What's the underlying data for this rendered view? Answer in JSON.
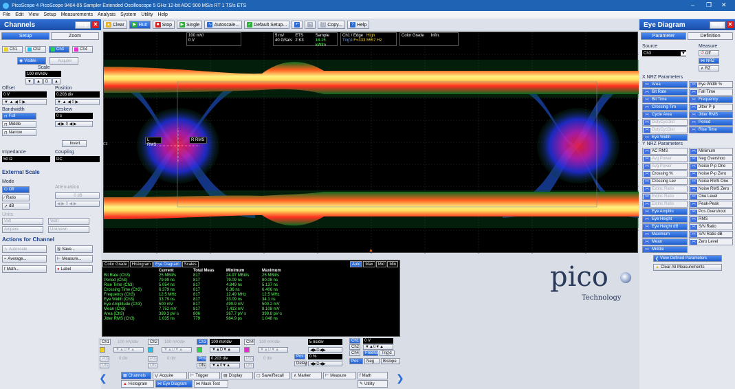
{
  "titlebar": {
    "title": "PicoScope 4  PicoScope 9404-05  Sampler Extended Oscilloscope  5 GHz  12-bit ADC  500 MS/s RT  1 TS/s ETS"
  },
  "menu": [
    "File",
    "Edit",
    "View",
    "Setup",
    "Measurements",
    "Analysis",
    "System",
    "Utility",
    "Help"
  ],
  "toolbar": {
    "clear": "Clear",
    "run": "Run",
    "stop": "Stop",
    "single": "Single",
    "autoscale": "Autoscale...",
    "default_setup": "Default Setup...",
    "copy": "Copy...",
    "help": "Help"
  },
  "left": {
    "title": "Channels",
    "help": "Help",
    "tab_setup": "Setup",
    "tab_zoom": "Zoom",
    "channels": [
      "Ch1",
      "Ch2",
      "Ch3",
      "Ch4"
    ],
    "visible": "Visible",
    "acquire": "Acquire",
    "scale_label": "Scale",
    "scale_value": "100 mV/div",
    "offset_label": "Offset",
    "offset_value": "0 V",
    "position_label": "Position",
    "position_value": "0.203 div",
    "bandwidth_label": "Bandwidth",
    "bw_full": "Full",
    "bw_middle": "Middle",
    "bw_narrow": "Narrow",
    "deskew_label": "Deskew",
    "deskew_value": "0 s",
    "invert": "Invert",
    "impedance_label": "Impedance",
    "impedance_value": "50 Ω",
    "coupling_label": "Coupling",
    "coupling_value": "DC",
    "ext_scale": "External Scale",
    "mode_label": "Mode",
    "mode_off": "Off",
    "mode_ratio": "Ratio",
    "mode_db": "dB",
    "attenuation_label": "Attenuation",
    "attenuation_value": "0 dB",
    "units_label": "Units",
    "unit_volt": "Volt",
    "unit_watt": "Watt",
    "unit_ampere": "Ampere",
    "unit_unknown": "Unknown",
    "actions": "Actions for Channel",
    "autoscale": "Autoscale",
    "save": "Save...",
    "average": "Average...",
    "measure": "Measure...",
    "math": "Math...",
    "label": "Label"
  },
  "scope": {
    "ch_scale": "100 mV/",
    "ch_offset": "0 V",
    "tb1": "5 ns/",
    "tb2": "ETS",
    "tb3": "Sample",
    "rate1": "40 GSa/s",
    "rate2": "2 K3",
    "rate3": "18.15 kWfm",
    "trig1": "Ch1 / Edge",
    "trig2": "High",
    "trig3": "Trig'd",
    "trig4": "F=333.5557 Hz",
    "colorgrade": "Color Grade",
    "infin": "Infin.",
    "lrms": "L RMS",
    "rrms": "R RMS",
    "marker": "C3"
  },
  "meas": {
    "tabs": [
      "Color Grade",
      "Histogram",
      "Eye Diagram",
      "Scales"
    ],
    "tabs_right": [
      "Auto",
      "Max",
      "Mid",
      "Min"
    ],
    "headers": [
      "",
      "Current",
      "Total Meas",
      "Minimum",
      "Maximum"
    ],
    "rows": [
      [
        "Bit Rate (Ch3)",
        "25 MBit/s",
        "817",
        "24.97 MBit/s",
        "25 MBit/s"
      ],
      [
        "Period (Ch3)",
        "79.99 ns",
        "817",
        "79.09 ns",
        "80.08 ns"
      ],
      [
        "Rise Time (Ch3)",
        "5.054 ns",
        "817",
        "4.849 ns",
        "5.137 ns"
      ],
      [
        "Crossing Time (Ch3)",
        "6.379 ns",
        "817",
        "6.36 ns",
        "6.406 ns"
      ],
      [
        "Frequency (Ch3)",
        "12.5 MHz",
        "817",
        "12.49 MHz",
        "12.5 MHz"
      ],
      [
        "Eye Width (Ch3)",
        "33.79 ns",
        "817",
        "33.09 ns",
        "34.1 ns"
      ],
      [
        "Eye Amplitude (Ch3)",
        "500 mV",
        "817",
        "499.9 mV",
        "500.2 mV"
      ],
      [
        "Mean (Ch3)",
        "7.752 mV",
        "817",
        "7.413 mV",
        "8.108 mV"
      ],
      [
        "Area (Ch3)",
        "389.3 pV·s",
        "806",
        "367.7 pV·s",
        "399.8 pV·s"
      ],
      [
        "Jitter RMS (Ch3)",
        "1.035 ns",
        "779",
        "984.9 ps",
        "1.048 ns"
      ]
    ]
  },
  "logo": {
    "brand": "pico",
    "sub": "Technology"
  },
  "bottom": {
    "ch_labels": [
      "Ch1",
      "Ch2",
      "Ch3",
      "Ch4"
    ],
    "ch_scales": [
      "100 mV/div",
      "100 mV/div",
      "100 mV/div",
      "100 mV/div"
    ],
    "pos_values": [
      "0 div",
      "0 div",
      "0.203 div",
      "0 div"
    ],
    "pos": "Pos",
    "ofs": "Ofs",
    "timebase": "5 ns/div",
    "delay_label": "Delay",
    "delay_pos": "0 %",
    "trig_ch": [
      "Ch1",
      "Ch2",
      "Ch3",
      "Ch4"
    ],
    "trig_val": "0 V",
    "freqrun": "Freerun",
    "trigd": "Trig'd",
    "pos_edge": "Pos",
    "neg_edge": "Neg",
    "bislope": "Bislope",
    "tabs_top": [
      "Channels",
      "Acquire",
      "Trigger",
      "Display",
      "Save/Recall",
      "Marker",
      "Measure",
      "Math"
    ],
    "tabs_bot": [
      "Histogram",
      "Eye Diagram",
      "Mask Test",
      "Utility"
    ]
  },
  "right": {
    "title": "Eye Diagram",
    "help": "Help",
    "tab_param": "Parameter",
    "tab_def": "Definition",
    "source_label": "Source",
    "source_value": "Ch3",
    "measure_label": "Measure",
    "off": "Off",
    "nrz": "NRZ",
    "rz": "RZ",
    "x_title": "X NRZ Parameters",
    "x_left": [
      "Area",
      "Bit Rate",
      "Bit Time",
      "Crossing Tim",
      "Cycle Area",
      "DutyCycDist",
      "DutyCycDist",
      "Eye Width"
    ],
    "x_right": [
      "Eye Width %",
      "Fall Time",
      "Frequency",
      "Jitter P-p",
      "Jitter RMS",
      "Period",
      "Rise Time"
    ],
    "y_title": "Y NRZ Parameters",
    "y_left": [
      "AC RMS",
      "Avg Power",
      "Avg Power",
      "Crossing %",
      "Crossing Lev",
      "Extinc Ratio",
      "Extinc Ratio",
      "Extinc Ratio",
      "Eye Amplitu",
      "Eye Height",
      "Eye Height dB",
      "Maximum",
      "Mean",
      "Middle"
    ],
    "y_right": [
      "Minimum",
      "Neg Overshoo",
      "Noise P-p One",
      "Noise P-p Zero",
      "Noise RMS One",
      "Noise RMS Zero",
      "One Level",
      "Peak-Peak",
      "Pos Overshoot",
      "RMS",
      "S/N Ratio",
      "S/N Ratio dB",
      "Zero Level"
    ],
    "view_defined": "View Defined Parameters",
    "clear_all": "Clear All Measurements"
  },
  "colors": {
    "accent": "#1f63b5",
    "blue_btn": "#2a6ad8",
    "green_text": "#5dff5d"
  }
}
